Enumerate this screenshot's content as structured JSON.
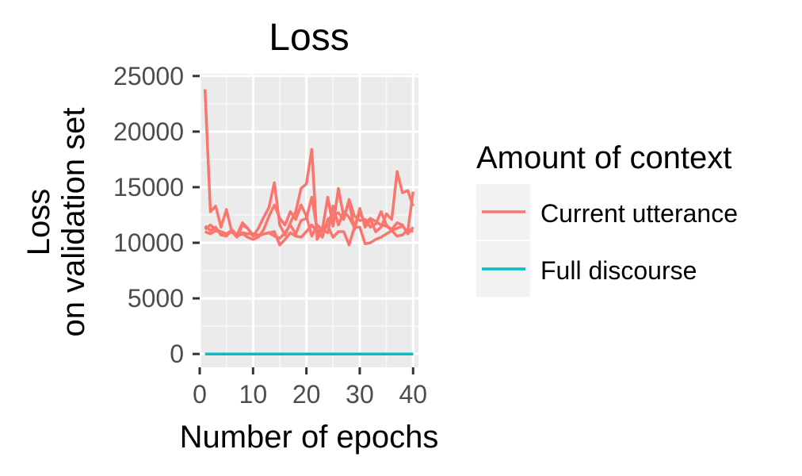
{
  "chart_data": {
    "type": "line",
    "title": "Loss",
    "xlabel": "Number of epochs",
    "ylabel": [
      "Loss",
      "on validation set"
    ],
    "xlim": [
      0,
      41
    ],
    "ylim": [
      -1200,
      25200
    ],
    "xticks": [
      0,
      10,
      20,
      30,
      40
    ],
    "yticks": [
      0,
      5000,
      10000,
      15000,
      20000,
      25000
    ],
    "grid": true,
    "legend_position": "right",
    "legend": {
      "title": "Amount of context",
      "entries": [
        {
          "label": "Current utterance",
          "color": "#F8766D"
        },
        {
          "label": "Full discourse",
          "color": "#00BFC4"
        }
      ]
    },
    "series": [
      {
        "group": "Current utterance",
        "color": "#F8766D",
        "x": [
          1,
          2,
          3,
          4,
          5,
          6,
          7,
          8,
          9,
          10,
          11,
          12,
          13,
          14,
          15,
          16,
          17,
          18,
          19,
          20,
          21,
          22,
          23,
          24,
          25,
          26,
          27,
          28,
          29,
          30,
          31,
          32,
          33,
          34,
          35,
          36,
          37,
          38,
          39,
          40
        ],
        "y": [
          23800,
          12800,
          13300,
          11400,
          13000,
          11000,
          10500,
          11600,
          11300,
          10600,
          11300,
          12300,
          13200,
          15400,
          11600,
          10700,
          11800,
          12800,
          14900,
          15300,
          18400,
          10300,
          11200,
          14100,
          11500,
          14900,
          12300,
          13700,
          11200,
          13100,
          11400,
          12100,
          11000,
          11400,
          12600,
          12100,
          16400,
          14500,
          14700,
          13300
        ]
      },
      {
        "group": "Current utterance",
        "color": "#F8766D",
        "x": [
          1,
          2,
          3,
          4,
          5,
          6,
          7,
          8,
          9,
          10,
          11,
          12,
          13,
          14,
          15,
          16,
          17,
          18,
          19,
          20,
          21,
          22,
          23,
          24,
          25,
          26,
          27,
          28,
          29,
          30,
          31,
          32,
          33,
          34,
          35,
          36,
          37,
          38,
          39,
          40
        ],
        "y": [
          11200,
          11600,
          11200,
          11000,
          10800,
          11100,
          10700,
          10900,
          10800,
          10800,
          10700,
          10800,
          10900,
          10600,
          10400,
          10900,
          11600,
          10800,
          12000,
          12200,
          14100,
          11200,
          10500,
          12100,
          12500,
          12700,
          12100,
          13900,
          12400,
          12000,
          12100,
          11400,
          11700,
          12800,
          11600,
          11100,
          11300,
          11500,
          11000,
          14600
        ]
      },
      {
        "group": "Current utterance",
        "color": "#F8766D",
        "x": [
          1,
          2,
          3,
          4,
          5,
          6,
          7,
          8,
          9,
          10,
          11,
          12,
          13,
          14,
          15,
          16,
          17,
          18,
          19,
          20,
          21,
          22,
          23,
          24,
          25,
          26,
          27,
          28,
          29,
          30,
          31,
          32,
          33,
          34,
          35,
          36,
          37,
          38,
          39,
          40
        ],
        "y": [
          11500,
          11100,
          11400,
          10700,
          10600,
          11200,
          10700,
          11800,
          11300,
          10700,
          10600,
          10800,
          10900,
          11000,
          9800,
          10300,
          10900,
          10600,
          10500,
          11000,
          11600,
          11000,
          11300,
          11500,
          10500,
          11000,
          11000,
          9800,
          11400,
          11400,
          9900,
          10000,
          10300,
          10500,
          10800,
          11100,
          10600,
          10700,
          11200,
          11000
        ]
      },
      {
        "group": "Current utterance",
        "color": "#F8766D",
        "x": [
          1,
          2,
          3,
          4,
          5,
          6,
          7,
          8,
          9,
          10,
          11,
          12,
          13,
          14,
          15,
          16,
          17,
          18,
          19,
          20,
          21,
          22,
          23,
          24,
          25,
          26,
          27,
          28,
          29,
          30,
          31,
          32,
          33,
          34,
          35,
          36,
          37,
          38,
          39,
          40
        ],
        "y": [
          11000,
          10800,
          11100,
          10900,
          10700,
          11000,
          10600,
          10800,
          10500,
          10300,
          10500,
          11200,
          12400,
          13400,
          12200,
          11600,
          12800,
          12100,
          13400,
          12400,
          10600,
          11600,
          11200,
          10900,
          13300,
          11600,
          12800,
          12300,
          11400,
          12700,
          11800,
          12200,
          11900,
          11600,
          11500,
          11200,
          11800,
          11600,
          10800,
          11400
        ]
      },
      {
        "group": "Full discourse",
        "color": "#00BFC4",
        "x": [
          1,
          40
        ],
        "y": [
          0,
          0
        ]
      }
    ]
  }
}
